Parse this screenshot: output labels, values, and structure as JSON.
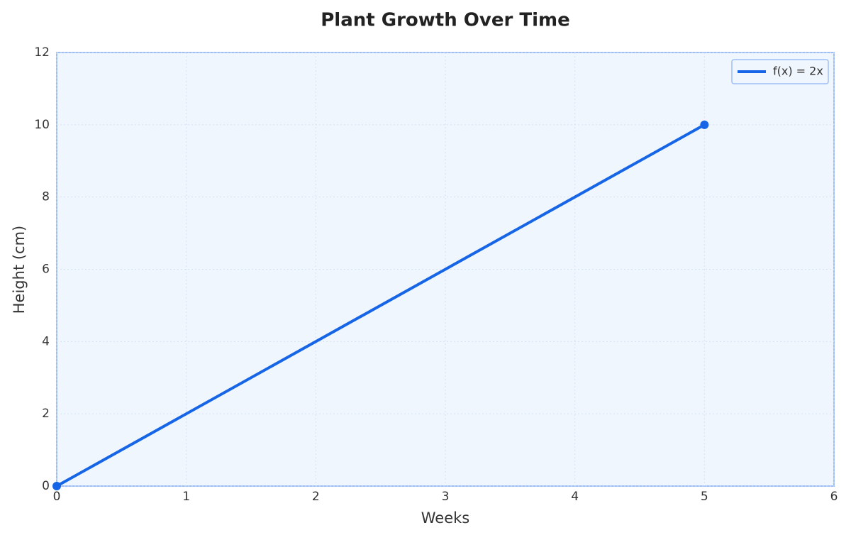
{
  "chart_data": {
    "type": "line",
    "title": "Plant Growth Over Time",
    "x_label": "Weeks",
    "y_label": "Height (cm)",
    "x": [
      0,
      5
    ],
    "series": [
      {
        "name": "f(x) = 2x",
        "color": "#1565e6",
        "values": [
          0,
          10
        ]
      }
    ],
    "xlim": [
      0,
      6
    ],
    "xticks": [
      0,
      1,
      2,
      3,
      4,
      5,
      6
    ],
    "ylim": [
      0,
      12
    ],
    "yticks": [
      0,
      2,
      4,
      6,
      8,
      10,
      12
    ],
    "grid": true,
    "legend": "upper right"
  }
}
